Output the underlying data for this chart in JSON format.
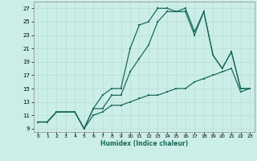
{
  "xlabel": "Humidex (Indice chaleur)",
  "xlim": [
    -0.5,
    23.5
  ],
  "ylim": [
    8.5,
    28
  ],
  "xticks": [
    0,
    1,
    2,
    3,
    4,
    5,
    6,
    7,
    8,
    9,
    10,
    11,
    12,
    13,
    14,
    15,
    16,
    17,
    18,
    19,
    20,
    21,
    22,
    23
  ],
  "yticks": [
    9,
    11,
    13,
    15,
    17,
    19,
    21,
    23,
    25,
    27
  ],
  "bg_color": "#cceee8",
  "grid_color": "#b8ddd6",
  "line_color": "#1a6b5a",
  "line1_x": [
    0,
    1,
    2,
    3,
    4,
    5,
    6,
    7,
    8,
    9,
    10,
    11,
    12,
    13,
    14,
    15,
    16,
    17,
    18,
    19,
    20,
    21,
    22,
    23
  ],
  "line1_y": [
    10,
    10,
    11.5,
    11.5,
    11.5,
    9,
    12,
    14,
    15,
    15,
    21,
    24.5,
    25,
    27,
    27,
    26.5,
    27,
    23.5,
    26.5,
    20,
    18,
    20.5,
    15,
    15
  ],
  "line2_x": [
    0,
    1,
    2,
    3,
    4,
    5,
    6,
    7,
    8,
    9,
    10,
    11,
    12,
    13,
    14,
    15,
    16,
    17,
    18,
    19,
    20,
    21,
    22,
    23
  ],
  "line2_y": [
    10,
    10,
    11.5,
    11.5,
    11.5,
    9,
    12,
    12,
    14,
    14,
    17.5,
    19.5,
    21.5,
    25,
    26.5,
    26.5,
    26.5,
    23,
    26.5,
    20,
    18,
    20.5,
    15,
    15
  ],
  "line3_x": [
    0,
    1,
    2,
    3,
    4,
    5,
    6,
    7,
    8,
    9,
    10,
    11,
    12,
    13,
    14,
    15,
    16,
    17,
    18,
    19,
    20,
    21,
    22,
    23
  ],
  "line3_y": [
    10,
    10,
    11.5,
    11.5,
    11.5,
    9,
    11,
    11.5,
    12.5,
    12.5,
    13,
    13.5,
    14,
    14,
    14.5,
    15,
    15,
    16,
    16.5,
    17,
    17.5,
    18,
    14.5,
    15
  ],
  "markersize": 1.8,
  "linewidth": 0.9
}
